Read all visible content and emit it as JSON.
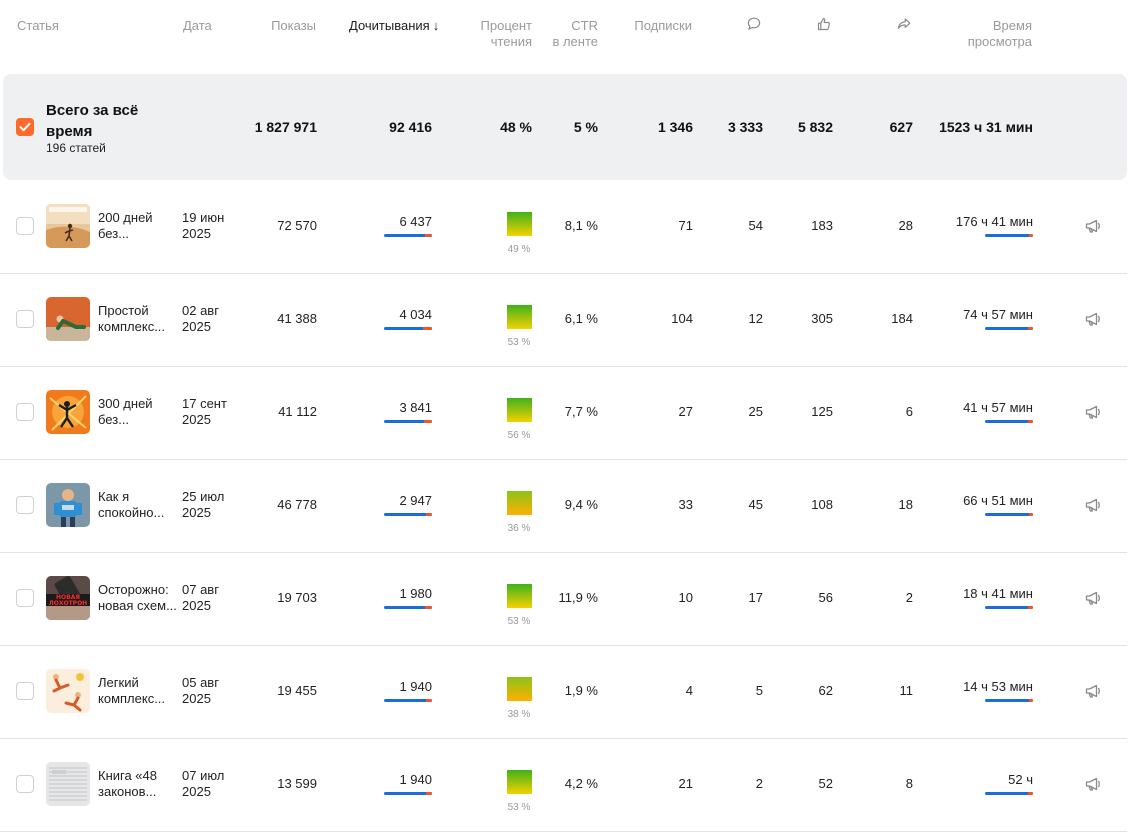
{
  "header": {
    "article": "Статья",
    "date": "Дата",
    "views": "Показы",
    "reads": "Дочитывания",
    "sort_arrow": "↓",
    "read_pct_line1": "Процент",
    "read_pct_line2": "чтения",
    "ctr_line1": "CTR",
    "ctr_line2": "в ленте",
    "subs": "Подписки",
    "comments_icon": "comment-icon",
    "likes_icon": "thumbs-up-icon",
    "shares_icon": "share-icon",
    "time_line1": "Время",
    "time_line2": "просмотра"
  },
  "total": {
    "title": "Всего за всё время",
    "subtitle": "196 статей",
    "views": "1 827 971",
    "reads": "92 416",
    "read_pct": "48 %",
    "ctr": "5 %",
    "subs": "1 346",
    "comments": "3 333",
    "likes": "5 832",
    "shares": "627",
    "time": "1523 ч 31 мин"
  },
  "rows": [
    {
      "t1": "200 дней",
      "t2": "без...",
      "d1": "19 июн",
      "d2": "2025",
      "views": "72 570",
      "reads": "6 437",
      "reads_fill": 0.86,
      "pct": "49 %",
      "pct_value": 49,
      "ctr": "8,1 %",
      "subs": "71",
      "comments": "54",
      "likes": "183",
      "shares": "28",
      "time": "176 ч 41 мин",
      "time_fill": 0.92,
      "thumb": "desert-runner",
      "sq_top": "#3fb21c",
      "sq_bottom": "#f4d100"
    },
    {
      "t1": "Простой",
      "t2": "комплекс...",
      "d1": "02 авг",
      "d2": "2025",
      "views": "41 388",
      "reads": "4 034",
      "reads_fill": 0.82,
      "pct": "53 %",
      "pct_value": 53,
      "ctr": "6,1 %",
      "subs": "104",
      "comments": "12",
      "likes": "305",
      "shares": "184",
      "time": "74 ч 57 мин",
      "time_fill": 0.9,
      "thumb": "stretching",
      "sq_top": "#3fb21c",
      "sq_bottom": "#f4d100"
    },
    {
      "t1": "300 дней",
      "t2": "без...",
      "d1": "17 сент",
      "d2": "2025",
      "views": "41 112",
      "reads": "3 841",
      "reads_fill": 0.84,
      "pct": "56 %",
      "pct_value": 56,
      "ctr": "7,7 %",
      "subs": "27",
      "comments": "25",
      "likes": "125",
      "shares": "6",
      "time": "41 ч 57 мин",
      "time_fill": 0.9,
      "thumb": "orange-figure",
      "sq_top": "#3fb21c",
      "sq_bottom": "#f4d100"
    },
    {
      "t1": "Как я",
      "t2": "спокойно...",
      "d1": "25 июл",
      "d2": "2025",
      "views": "46 778",
      "reads": "2 947",
      "reads_fill": 0.87,
      "pct": "36 %",
      "pct_value": 36,
      "ctr": "9,4 %",
      "subs": "33",
      "comments": "45",
      "likes": "108",
      "shares": "18",
      "time": "66 ч 51 мин",
      "time_fill": 0.92,
      "thumb": "cartoon-man",
      "sq_top": "#8cc21a",
      "sq_bottom": "#ffb000"
    },
    {
      "t1": "Осторожно:",
      "t2": "новая схем...",
      "d1": "07 авг",
      "d2": "2025",
      "views": "19 703",
      "reads": "1 980",
      "reads_fill": 0.86,
      "pct": "53 %",
      "pct_value": 53,
      "ctr": "11,9 %",
      "subs": "10",
      "comments": "17",
      "likes": "56",
      "shares": "2",
      "time": "18 ч 41 мин",
      "time_fill": 0.9,
      "thumb": "phone-scam",
      "sq_top": "#3fb21c",
      "sq_bottom": "#f4d100"
    },
    {
      "t1": "Легкий",
      "t2": "комплекс...",
      "d1": "05 авг",
      "d2": "2025",
      "views": "19 455",
      "reads": "1 940",
      "reads_fill": 0.88,
      "pct": "38 %",
      "pct_value": 38,
      "ctr": "1,9 %",
      "subs": "4",
      "comments": "5",
      "likes": "62",
      "shares": "11",
      "time": "14 ч 53 мин",
      "time_fill": 0.92,
      "thumb": "exercise-figures",
      "sq_top": "#8cc21a",
      "sq_bottom": "#ffb000"
    },
    {
      "t1": "Книга «48",
      "t2": "законов...",
      "d1": "07 июл",
      "d2": "2025",
      "views": "13 599",
      "reads": "1 940",
      "reads_fill": 0.88,
      "pct": "53 %",
      "pct_value": 53,
      "ctr": "4,2 %",
      "subs": "21",
      "comments": "2",
      "likes": "52",
      "shares": "8",
      "time": "52 ч",
      "time_fill": 0.9,
      "thumb": "book-page",
      "sq_top": "#3fb21c",
      "sq_bottom": "#f4d100"
    }
  ],
  "colors": {
    "accent": "#fc6a2c",
    "bar_blue": "#1a6ddb",
    "bar_red": "#f0552b",
    "total_bg": "#eff0f2"
  }
}
